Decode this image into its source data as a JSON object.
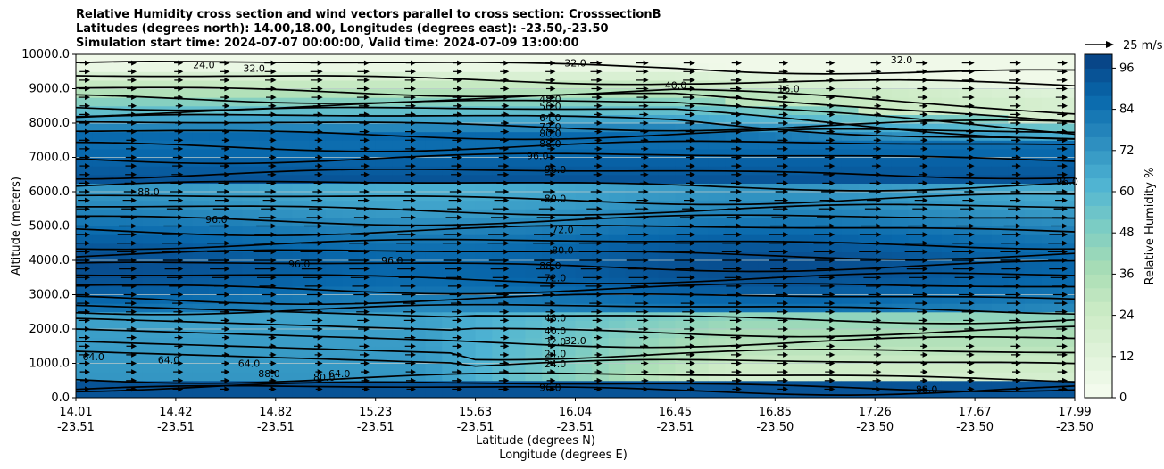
{
  "chart_data": {
    "type": "contour",
    "title_lines": [
      "Relative Humidity cross section and wind vectors parallel to cross section: CrosssectionB",
      "Latitudes (degrees north): 14.00,18.00, Longitudes (degrees east): -23.50,-23.50",
      "Simulation start time: 2024-07-07 00:00:00, Valid time: 2024-07-09 13:00:00"
    ],
    "ylabel": "Altitude (meters)",
    "xlabel_lat": "Latitude (degrees N)",
    "xlabel_lon": "Longitude (degrees E)",
    "ylim": [
      0,
      10000
    ],
    "yticks": [
      "0.0",
      "1000.0",
      "2000.0",
      "3000.0",
      "4000.0",
      "5000.0",
      "6000.0",
      "7000.0",
      "8000.0",
      "9000.0",
      "10000.0"
    ],
    "xticks": [
      {
        "lat": "14.01",
        "lon": "-23.51"
      },
      {
        "lat": "14.42",
        "lon": "-23.51"
      },
      {
        "lat": "14.82",
        "lon": "-23.51"
      },
      {
        "lat": "15.23",
        "lon": "-23.51"
      },
      {
        "lat": "15.63",
        "lon": "-23.51"
      },
      {
        "lat": "16.04",
        "lon": "-23.51"
      },
      {
        "lat": "16.45",
        "lon": "-23.51"
      },
      {
        "lat": "16.85",
        "lon": "-23.50"
      },
      {
        "lat": "17.26",
        "lon": "-23.50"
      },
      {
        "lat": "17.67",
        "lon": "-23.50"
      },
      {
        "lat": "17.99",
        "lon": "-23.50"
      }
    ],
    "colorbar": {
      "label": "Relative Humidity %",
      "ticks": [
        "0",
        "12",
        "24",
        "36",
        "48",
        "60",
        "72",
        "84",
        "96"
      ],
      "range": [
        0,
        100
      ],
      "colors": [
        "#f7fcf0",
        "#e0f3db",
        "#ccebc5",
        "#a8ddb5",
        "#7bccc4",
        "#4eb3d3",
        "#2b8cbe",
        "#0868ac",
        "#084081"
      ]
    },
    "wind_key": "25 m/s",
    "contour_labels": [
      {
        "text": "24.0",
        "x": 14.52,
        "z": 9700
      },
      {
        "text": "32.0",
        "x": 14.72,
        "z": 9600
      },
      {
        "text": "32.0",
        "x": 16.0,
        "z": 9750
      },
      {
        "text": "32.0",
        "x": 17.3,
        "z": 9850
      },
      {
        "text": "40.0",
        "x": 16.4,
        "z": 9100
      },
      {
        "text": "16.0",
        "x": 16.85,
        "z": 9000
      },
      {
        "text": "48.0",
        "x": 15.9,
        "z": 8700
      },
      {
        "text": "56.0",
        "x": 15.9,
        "z": 8500
      },
      {
        "text": "64.0",
        "x": 15.9,
        "z": 8150
      },
      {
        "text": "72.0",
        "x": 15.9,
        "z": 7900
      },
      {
        "text": "80.0",
        "x": 15.9,
        "z": 7700
      },
      {
        "text": "88.0",
        "x": 15.9,
        "z": 7400
      },
      {
        "text": "96.0",
        "x": 15.85,
        "z": 7050
      },
      {
        "text": "96.0",
        "x": 15.92,
        "z": 6650
      },
      {
        "text": "80.0",
        "x": 15.92,
        "z": 5800
      },
      {
        "text": "88.0",
        "x": 14.3,
        "z": 6000
      },
      {
        "text": "96.0",
        "x": 14.57,
        "z": 5200
      },
      {
        "text": "72.0",
        "x": 15.95,
        "z": 4900
      },
      {
        "text": "80.0",
        "x": 15.95,
        "z": 4300
      },
      {
        "text": "88.0",
        "x": 15.9,
        "z": 3850
      },
      {
        "text": "96.0",
        "x": 14.9,
        "z": 3900
      },
      {
        "text": "96.0",
        "x": 15.27,
        "z": 4000
      },
      {
        "text": "72.0",
        "x": 15.92,
        "z": 3500
      },
      {
        "text": "48.0",
        "x": 15.92,
        "z": 2330
      },
      {
        "text": "40.0",
        "x": 15.92,
        "z": 1950
      },
      {
        "text": "32.0",
        "x": 15.92,
        "z": 1640
      },
      {
        "text": "32.0",
        "x": 16.0,
        "z": 1660
      },
      {
        "text": "24.0",
        "x": 15.92,
        "z": 1280
      },
      {
        "text": "24.0",
        "x": 15.92,
        "z": 990
      },
      {
        "text": "64.0",
        "x": 14.08,
        "z": 1200
      },
      {
        "text": "64.0",
        "x": 14.38,
        "z": 1100
      },
      {
        "text": "64.0",
        "x": 14.7,
        "z": 1000
      },
      {
        "text": "88.0",
        "x": 14.78,
        "z": 700
      },
      {
        "text": "64.0",
        "x": 15.06,
        "z": 700
      },
      {
        "text": "80.0",
        "x": 15.0,
        "z": 600
      },
      {
        "text": "96.0",
        "x": 15.9,
        "z": 300
      },
      {
        "text": "88.0",
        "x": 17.4,
        "z": 250
      },
      {
        "text": "96.0",
        "x": 17.96,
        "z": 6300
      }
    ]
  }
}
